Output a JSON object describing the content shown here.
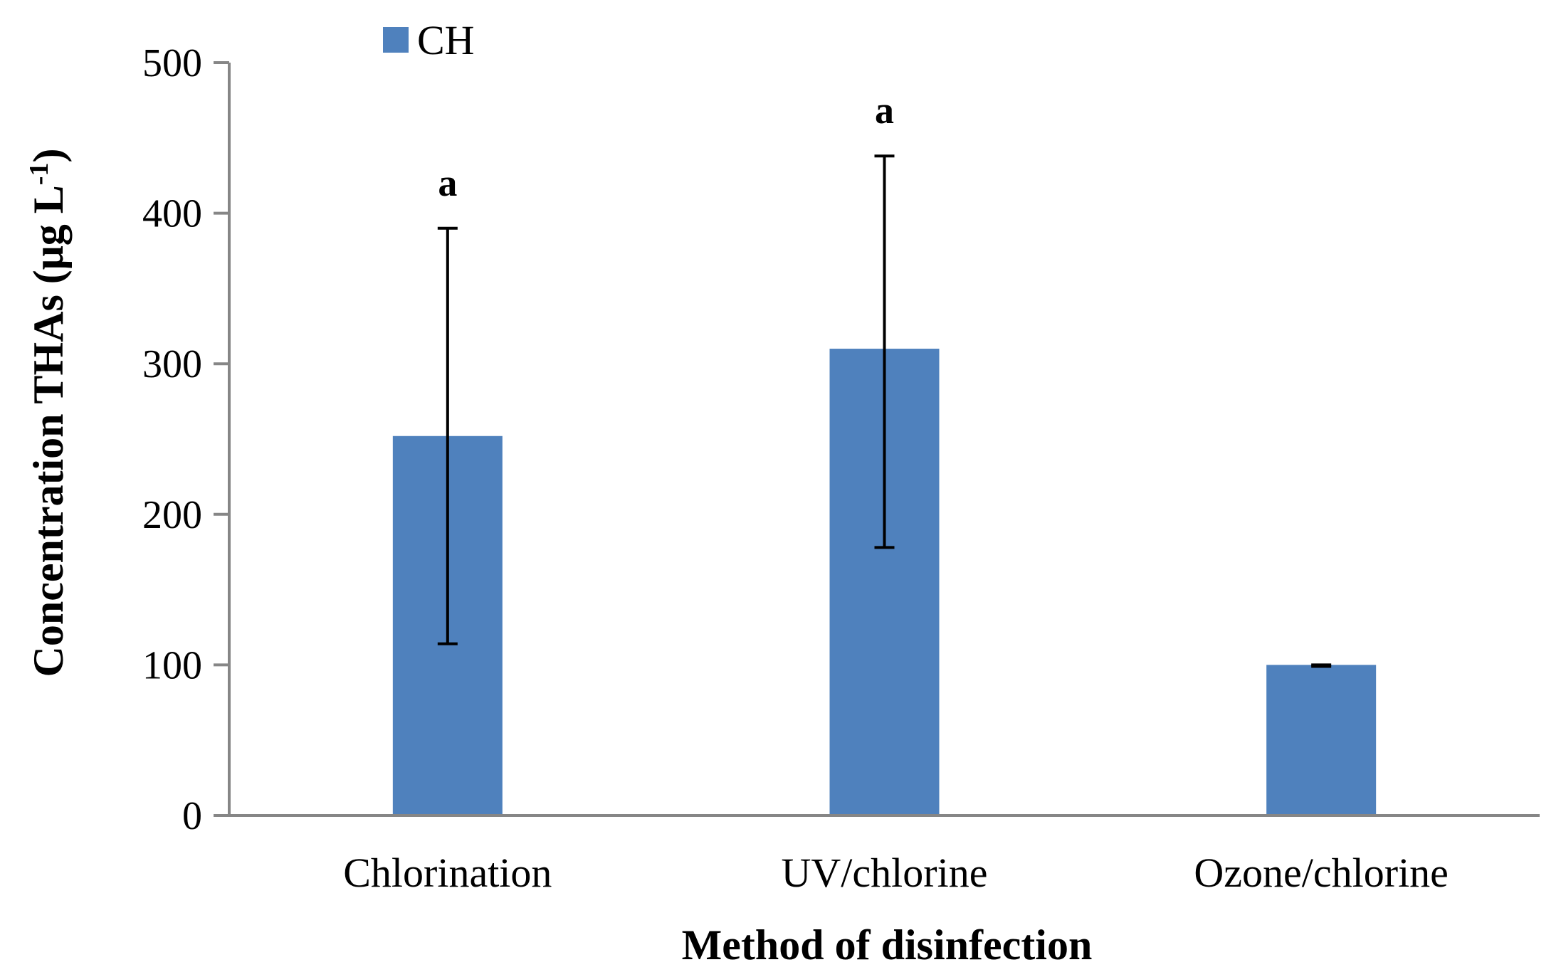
{
  "chart_data": {
    "type": "bar",
    "categories": [
      "Chlorination",
      "UV/chlorine",
      "Ozone/chlorine"
    ],
    "series": [
      {
        "name": "CH",
        "values": [
          252,
          310,
          100
        ],
        "error_low": [
          114,
          178,
          99
        ],
        "error_high": [
          390,
          438,
          100
        ]
      }
    ],
    "significance_labels": [
      "a",
      "a",
      ""
    ],
    "xlabel": "Method of disinfection",
    "ylabel_main": "Concentration THAs (μg L",
    "ylabel_sup": "-1",
    "ylabel_close": ")",
    "ylim": [
      0,
      500
    ],
    "yticks": [
      0,
      100,
      200,
      300,
      400,
      500
    ],
    "grid": false,
    "legend_position": "top-left"
  },
  "colors": {
    "bar": "#4F81BD",
    "axis": "#868686",
    "error": "#000000"
  }
}
